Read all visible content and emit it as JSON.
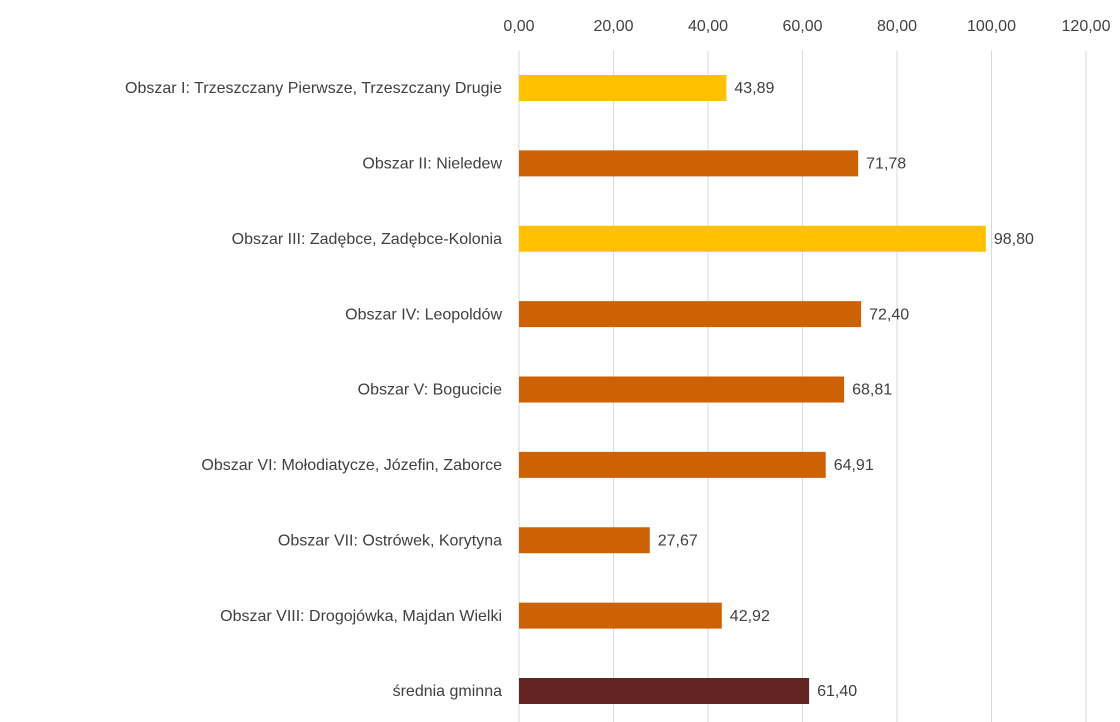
{
  "chart_data": {
    "type": "bar",
    "orientation": "horizontal",
    "categories": [
      "Obszar I: Trzeszczany Pierwsze, Trzeszczany Drugie",
      "Obszar II: Nieledew",
      "Obszar III: Zadębce, Zadębce-Kolonia",
      "Obszar IV: Leopoldów",
      "Obszar V: Bogucicie",
      "Obszar VI: Mołodiatycze, Józefin, Zaborce",
      "Obszar VII: Ostrówek, Korytyna",
      "Obszar VIII: Drogojówka, Majdan Wielki",
      "średnia gminna"
    ],
    "values": [
      43.89,
      71.78,
      98.8,
      72.4,
      68.81,
      64.91,
      27.67,
      42.92,
      61.4
    ],
    "value_labels": [
      "43,89",
      "71,78",
      "98,80",
      "72,40",
      "68,81",
      "64,91",
      "27,67",
      "42,92",
      "61,40"
    ],
    "colors": [
      "#ffc000",
      "#cc6204",
      "#ffc000",
      "#cc6204",
      "#cc6204",
      "#cc6204",
      "#cc6204",
      "#cc6204",
      "#632523"
    ],
    "xlim": [
      0,
      120
    ],
    "xticks": [
      {
        "value": 0,
        "label": "0,00"
      },
      {
        "value": 20,
        "label": "20,00"
      },
      {
        "value": 40,
        "label": "40,00"
      },
      {
        "value": 60,
        "label": "60,00"
      },
      {
        "value": 80,
        "label": "80,00"
      },
      {
        "value": 100,
        "label": "100,00"
      },
      {
        "value": 120,
        "label": "120,00"
      }
    ],
    "grid": true
  }
}
